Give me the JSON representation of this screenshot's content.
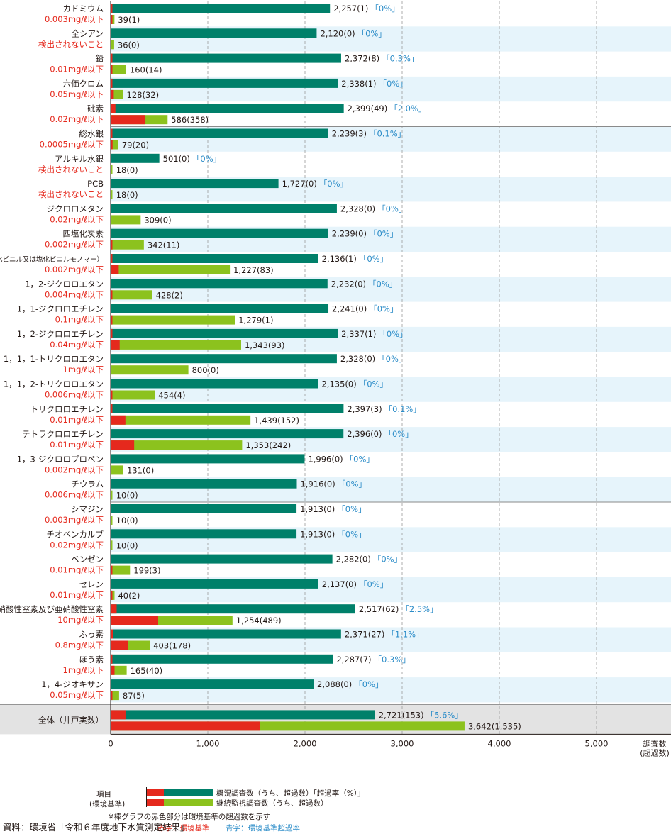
{
  "chart_data": {
    "type": "bar",
    "xlim": [
      0,
      6000
    ],
    "x_ticks": [
      "0",
      "1,000",
      "2,000",
      "3,000",
      "4,000",
      "5,000"
    ],
    "x_tick_values": [
      0,
      1000,
      2000,
      3000,
      4000,
      5000
    ],
    "xlabel_line1": "調査数",
    "xlabel_line2": "(超過数)",
    "categories": [
      {
        "name": "カドミウム",
        "standard": "0.003mg/ℓ以下",
        "survey": 2257,
        "survey_exceed": 1,
        "survey_label": "2,257(1)",
        "rate": "「0%」",
        "monitor": 39,
        "monitor_exceed": 1,
        "monitor_label": "39(1)"
      },
      {
        "name": "全シアン",
        "standard": "検出されないこと",
        "survey": 2120,
        "survey_exceed": 0,
        "survey_label": "2,120(0)",
        "rate": "「0%」",
        "monitor": 36,
        "monitor_exceed": 0,
        "monitor_label": "36(0)"
      },
      {
        "name": "鉛",
        "standard": "0.01mg/ℓ以下",
        "survey": 2372,
        "survey_exceed": 8,
        "survey_label": "2,372(8)",
        "rate": "「0.3%」",
        "monitor": 160,
        "monitor_exceed": 14,
        "monitor_label": "160(14)"
      },
      {
        "name": "六価クロム",
        "standard": "0.05mg/ℓ以下",
        "survey": 2338,
        "survey_exceed": 1,
        "survey_label": "2,338(1)",
        "rate": "「0%」",
        "monitor": 128,
        "monitor_exceed": 32,
        "monitor_label": "128(32)"
      },
      {
        "name": "砒素",
        "standard": "0.02mg/ℓ以下",
        "survey": 2399,
        "survey_exceed": 49,
        "survey_label": "2,399(49)",
        "rate": "「2.0%」",
        "monitor": 586,
        "monitor_exceed": 358,
        "monitor_label": "586(358)"
      },
      {
        "name": "総水銀",
        "standard": "0.0005mg/ℓ以下",
        "survey": 2239,
        "survey_exceed": 3,
        "survey_label": "2,239(3)",
        "rate": "「0.1%」",
        "monitor": 79,
        "monitor_exceed": 20,
        "monitor_label": "79(20)"
      },
      {
        "name": "アルキル水銀",
        "standard": "検出されないこと",
        "survey": 501,
        "survey_exceed": 0,
        "survey_label": "501(0)",
        "rate": "「0%」",
        "monitor": 18,
        "monitor_exceed": 0,
        "monitor_label": "18(0)"
      },
      {
        "name": "PCB",
        "standard": "検出されないこと",
        "survey": 1727,
        "survey_exceed": 0,
        "survey_label": "1,727(0)",
        "rate": "「0%」",
        "monitor": 18,
        "monitor_exceed": 0,
        "monitor_label": "18(0)"
      },
      {
        "name": "ジクロロメタン",
        "standard": "0.02mg/ℓ以下",
        "survey": 2328,
        "survey_exceed": 0,
        "survey_label": "2,328(0)",
        "rate": "「0%」",
        "monitor": 309,
        "monitor_exceed": 0,
        "monitor_label": "309(0)"
      },
      {
        "name": "四塩化炭素",
        "standard": "0.002mg/ℓ以下",
        "survey": 2239,
        "survey_exceed": 0,
        "survey_label": "2,239(0)",
        "rate": "「0%」",
        "monitor": 342,
        "monitor_exceed": 11,
        "monitor_label": "342(11)"
      },
      {
        "name": "クロロエチレン（別名塩化ビニル又は塩化ビニルモノマー）",
        "standard": "0.002mg/ℓ以下",
        "survey": 2136,
        "survey_exceed": 1,
        "survey_label": "2,136(1)",
        "rate": "「0%」",
        "monitor": 1227,
        "monitor_exceed": 83,
        "monitor_label": "1,227(83)"
      },
      {
        "name": "1，2-ジクロロエタン",
        "standard": "0.004mg/ℓ以下",
        "survey": 2232,
        "survey_exceed": 0,
        "survey_label": "2,232(0)",
        "rate": "「0%」",
        "monitor": 428,
        "monitor_exceed": 2,
        "monitor_label": "428(2)"
      },
      {
        "name": "1，1-ジクロロエチレン",
        "standard": "0.1mg/ℓ以下",
        "survey": 2241,
        "survey_exceed": 0,
        "survey_label": "2,241(0)",
        "rate": "「0%」",
        "monitor": 1279,
        "monitor_exceed": 1,
        "monitor_label": "1,279(1)"
      },
      {
        "name": "1，2-ジクロロエチレン",
        "standard": "0.04mg/ℓ以下",
        "survey": 2337,
        "survey_exceed": 1,
        "survey_label": "2,337(1)",
        "rate": "「0%」",
        "monitor": 1343,
        "monitor_exceed": 93,
        "monitor_label": "1,343(93)"
      },
      {
        "name": "1，1，1-トリクロロエタン",
        "standard": "1mg/ℓ以下",
        "survey": 2328,
        "survey_exceed": 0,
        "survey_label": "2,328(0)",
        "rate": "「0%」",
        "monitor": 800,
        "monitor_exceed": 0,
        "monitor_label": "800(0)"
      },
      {
        "name": "1，1，2-トリクロロエタン",
        "standard": "0.006mg/ℓ以下",
        "survey": 2135,
        "survey_exceed": 0,
        "survey_label": "2,135(0)",
        "rate": "「0%」",
        "monitor": 454,
        "monitor_exceed": 4,
        "monitor_label": "454(4)"
      },
      {
        "name": "トリクロロエチレン",
        "standard": "0.01mg/ℓ以下",
        "survey": 2397,
        "survey_exceed": 3,
        "survey_label": "2,397(3)",
        "rate": "「0.1%」",
        "monitor": 1439,
        "monitor_exceed": 152,
        "monitor_label": "1,439(152)"
      },
      {
        "name": "テトラクロロエチレン",
        "standard": "0.01mg/ℓ以下",
        "survey": 2396,
        "survey_exceed": 0,
        "survey_label": "2,396(0)",
        "rate": "「0%」",
        "monitor": 1353,
        "monitor_exceed": 242,
        "monitor_label": "1,353(242)"
      },
      {
        "name": "1，3-ジクロロプロペン",
        "standard": "0.002mg/ℓ以下",
        "survey": 1996,
        "survey_exceed": 0,
        "survey_label": "1,996(0)",
        "rate": "「0%」",
        "monitor": 131,
        "monitor_exceed": 0,
        "monitor_label": "131(0)"
      },
      {
        "name": "チウラム",
        "standard": "0.006mg/ℓ以下",
        "survey": 1916,
        "survey_exceed": 0,
        "survey_label": "1,916(0)",
        "rate": "「0%」",
        "monitor": 10,
        "monitor_exceed": 0,
        "monitor_label": "10(0)"
      },
      {
        "name": "シマジン",
        "standard": "0.003mg/ℓ以下",
        "survey": 1913,
        "survey_exceed": 0,
        "survey_label": "1,913(0)",
        "rate": "「0%」",
        "monitor": 10,
        "monitor_exceed": 0,
        "monitor_label": "10(0)"
      },
      {
        "name": "チオベンカルブ",
        "standard": "0.02mg/ℓ以下",
        "survey": 1913,
        "survey_exceed": 0,
        "survey_label": "1,913(0)",
        "rate": "「0%」",
        "monitor": 10,
        "monitor_exceed": 0,
        "monitor_label": "10(0)"
      },
      {
        "name": "ベンゼン",
        "standard": "0.01mg/ℓ以下",
        "survey": 2282,
        "survey_exceed": 0,
        "survey_label": "2,282(0)",
        "rate": "「0%」",
        "monitor": 199,
        "monitor_exceed": 3,
        "monitor_label": "199(3)"
      },
      {
        "name": "セレン",
        "standard": "0.01mg/ℓ以下",
        "survey": 2137,
        "survey_exceed": 0,
        "survey_label": "2,137(0)",
        "rate": "「0%」",
        "monitor": 40,
        "monitor_exceed": 2,
        "monitor_label": "40(2)"
      },
      {
        "name": "硝酸性窒素及び亜硝酸性窒素",
        "standard": "10mg/ℓ以下",
        "survey": 2517,
        "survey_exceed": 62,
        "survey_label": "2,517(62)",
        "rate": "「2.5%」",
        "monitor": 1254,
        "monitor_exceed": 489,
        "monitor_label": "1,254(489)"
      },
      {
        "name": "ふっ素",
        "standard": "0.8mg/ℓ以下",
        "survey": 2371,
        "survey_exceed": 27,
        "survey_label": "2,371(27)",
        "rate": "「1.1%」",
        "monitor": 403,
        "monitor_exceed": 178,
        "monitor_label": "403(178)"
      },
      {
        "name": "ほう素",
        "standard": "1mg/ℓ以下",
        "survey": 2287,
        "survey_exceed": 7,
        "survey_label": "2,287(7)",
        "rate": "「0.3%」",
        "monitor": 165,
        "monitor_exceed": 40,
        "monitor_label": "165(40)"
      },
      {
        "name": "1，4-ジオキサン",
        "standard": "0.05mg/ℓ以下",
        "survey": 2088,
        "survey_exceed": 0,
        "survey_label": "2,088(0)",
        "rate": "「0%」",
        "monitor": 87,
        "monitor_exceed": 5,
        "monitor_label": "87(5)"
      }
    ],
    "total": {
      "name": "全体（井戸実数）",
      "survey": 2721,
      "survey_exceed": 153,
      "survey_label": "2,721(153)",
      "rate": "「5.6%」",
      "monitor": 3642,
      "monitor_exceed": 1535,
      "monitor_label": "3,642(1,535)"
    },
    "colors": {
      "survey": "#00806a",
      "monitor": "#8cc21e",
      "exceed": "#e5291d",
      "standard_text": "#e5291d",
      "rate_text": "#2b8cc8",
      "band": "#e6f4fb",
      "total_band": "#e3e3e3"
    }
  },
  "legend": {
    "item_label": "項目",
    "standard_label": "(環境基準)",
    "survey_text": "概況調査数（うち、超過数）「超過率（%）」",
    "monitor_text": "継続監視調査数（うち、超過数）",
    "note": "※棒グラフの赤色部分は環境基準の超過数を示す",
    "red_note": "赤字：環境基準",
    "blue_note": "青字：環境基準超過率"
  },
  "source": "資料：環境省「令和６年度地下水質測定結果」"
}
